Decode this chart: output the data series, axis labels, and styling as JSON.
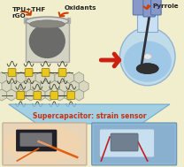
{
  "background_color": "#f0eecc",
  "labels": {
    "tpu_rgo": "TPU+THF\nrGO",
    "oxidants": "Oxidants",
    "pyrrole": "Pyrrole",
    "supercapacitor": "Supercapacitor: strain sensor"
  },
  "arrow_color": "#d04000",
  "text_color_main": "#222222",
  "text_color_super": "#c83010",
  "figsize": [
    2.08,
    1.89
  ],
  "dpi": 100
}
